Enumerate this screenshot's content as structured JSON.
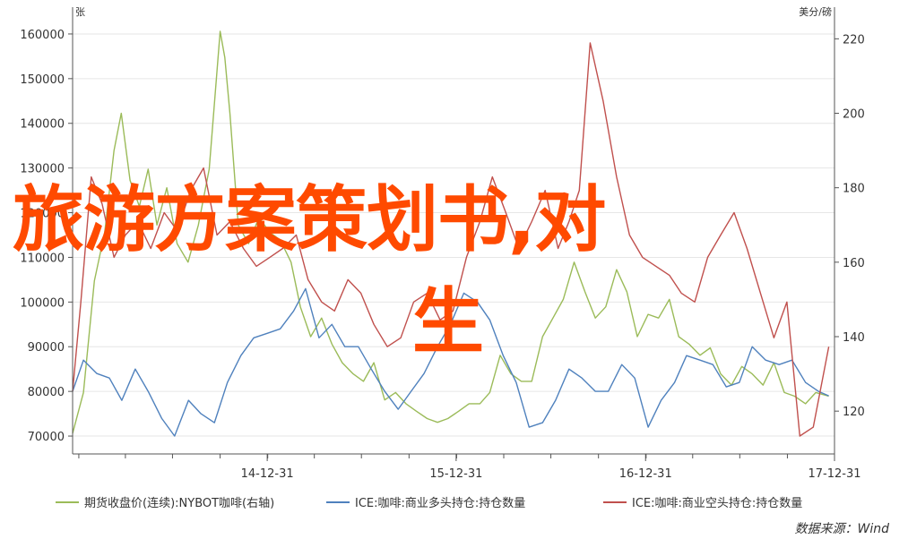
{
  "chart_data": {
    "type": "line",
    "left_axis": {
      "unit": "张",
      "ticks": [
        "160000",
        "150000",
        "140000",
        "130000",
        "120000",
        "110000",
        "100000",
        "90000",
        "80000",
        "70000"
      ],
      "ylim": [
        66000,
        166000
      ]
    },
    "right_axis": {
      "unit": "美分/磅",
      "ticks": [
        "220",
        "200",
        "180",
        "160",
        "140",
        "120"
      ],
      "ylim": [
        108.5,
        228.5
      ]
    },
    "x_ticks": [
      "14-12-31",
      "15-12-31",
      "16-12-31",
      "17-12-31"
    ],
    "xlim": [
      "2013-12-20",
      "2017-12-31"
    ],
    "series": [
      {
        "name": "期货收盘价(连续):NYBOT咖啡(右轴)",
        "axis": "right",
        "color": "#9bbb59",
        "dates": [
          "2013-12-20",
          "2014-01-10",
          "2014-01-31",
          "2014-02-20",
          "2014-03-10",
          "2014-03-24",
          "2014-04-10",
          "2014-04-28",
          "2014-05-15",
          "2014-06-01",
          "2014-06-20",
          "2014-07-10",
          "2014-07-31",
          "2014-08-20",
          "2014-09-10",
          "2014-10-01",
          "2014-10-10",
          "2014-10-20",
          "2014-11-05",
          "2014-11-25",
          "2014-12-15",
          "2015-01-05",
          "2015-01-25",
          "2015-02-15",
          "2015-03-05",
          "2015-03-25",
          "2015-04-15",
          "2015-05-05",
          "2015-05-25",
          "2015-06-15",
          "2015-07-05",
          "2015-07-25",
          "2015-08-15",
          "2015-09-05",
          "2015-09-25",
          "2015-10-15",
          "2015-11-05",
          "2015-11-25",
          "2015-12-15",
          "2016-01-05",
          "2016-01-25",
          "2016-02-15",
          "2016-03-05",
          "2016-03-25",
          "2016-04-15",
          "2016-05-05",
          "2016-05-25",
          "2016-06-15",
          "2016-07-05",
          "2016-07-25",
          "2016-08-15",
          "2016-09-05",
          "2016-09-25",
          "2016-10-15",
          "2016-11-05",
          "2016-11-25",
          "2016-12-15",
          "2017-01-05",
          "2017-01-25",
          "2017-02-15",
          "2017-03-05",
          "2017-03-25",
          "2017-04-15",
          "2017-05-05",
          "2017-05-25",
          "2017-06-15",
          "2017-07-05",
          "2017-07-25",
          "2017-08-15",
          "2017-09-05",
          "2017-09-25",
          "2017-10-15",
          "2017-11-05",
          "2017-11-25",
          "2017-12-20"
        ],
        "values": [
          114,
          125,
          155,
          168,
          190,
          200,
          182,
          175,
          185,
          170,
          180,
          165,
          160,
          170,
          185,
          222,
          215,
          200,
          170,
          165,
          172,
          168,
          166,
          160,
          148,
          140,
          145,
          138,
          133,
          130,
          128,
          133,
          123,
          125,
          122,
          120,
          118,
          117,
          118,
          120,
          122,
          122,
          125,
          135,
          130,
          128,
          128,
          140,
          145,
          150,
          160,
          152,
          145,
          148,
          158,
          152,
          140,
          146,
          145,
          150,
          140,
          138,
          135,
          137,
          130,
          127,
          132,
          130,
          127,
          133,
          125,
          124,
          122,
          125,
          124
        ]
      },
      {
        "name": "ICE:咖啡:商业多头持仓:持仓数量",
        "axis": "left",
        "color": "#4f81bd",
        "dates": [
          "2013-12-20",
          "2014-01-10",
          "2014-02-05",
          "2014-03-01",
          "2014-03-25",
          "2014-04-20",
          "2014-05-15",
          "2014-06-10",
          "2014-07-05",
          "2014-08-01",
          "2014-08-25",
          "2014-09-20",
          "2014-10-15",
          "2014-11-10",
          "2014-12-05",
          "2014-12-31",
          "2015-01-25",
          "2015-02-20",
          "2015-03-15",
          "2015-04-10",
          "2015-05-05",
          "2015-05-30",
          "2015-06-25",
          "2015-07-20",
          "2015-08-15",
          "2015-09-10",
          "2015-10-05",
          "2015-10-30",
          "2015-11-25",
          "2015-12-20",
          "2016-01-15",
          "2016-02-10",
          "2016-03-05",
          "2016-03-31",
          "2016-04-25",
          "2016-05-20",
          "2016-06-15",
          "2016-07-10",
          "2016-08-05",
          "2016-08-30",
          "2016-09-25",
          "2016-10-20",
          "2016-11-15",
          "2016-12-10",
          "2017-01-05",
          "2017-01-30",
          "2017-02-25",
          "2017-03-20",
          "2017-04-15",
          "2017-05-10",
          "2017-06-05",
          "2017-06-30",
          "2017-07-25",
          "2017-08-20",
          "2017-09-15",
          "2017-10-10",
          "2017-11-05",
          "2017-11-30",
          "2017-12-20"
        ],
        "values": [
          80000,
          87000,
          84000,
          83000,
          78000,
          85000,
          80000,
          74000,
          70000,
          78000,
          75000,
          73000,
          82000,
          88000,
          92000,
          93000,
          94000,
          98000,
          103000,
          92000,
          95000,
          90000,
          90000,
          85000,
          80000,
          76000,
          80000,
          84000,
          90000,
          95000,
          102000,
          100000,
          96000,
          88000,
          82000,
          72000,
          73000,
          78000,
          85000,
          83000,
          80000,
          80000,
          86000,
          83000,
          72000,
          78000,
          82000,
          88000,
          87000,
          86000,
          81000,
          82000,
          90000,
          87000,
          86000,
          87000,
          82000,
          80000,
          79000
        ]
      },
      {
        "name": "ICE:咖啡:商业空头持仓:持仓数量",
        "axis": "left",
        "color": "#c0504d",
        "dates": [
          "2013-12-20",
          "2014-01-05",
          "2014-01-25",
          "2014-02-15",
          "2014-03-10",
          "2014-04-01",
          "2014-04-25",
          "2014-05-20",
          "2014-06-15",
          "2014-07-10",
          "2014-08-05",
          "2014-08-30",
          "2014-09-25",
          "2014-10-20",
          "2014-11-15",
          "2014-12-10",
          "2015-01-05",
          "2015-01-30",
          "2015-02-25",
          "2015-03-20",
          "2015-04-15",
          "2015-05-10",
          "2015-06-05",
          "2015-06-30",
          "2015-07-25",
          "2015-08-20",
          "2015-09-15",
          "2015-10-10",
          "2015-11-05",
          "2015-11-30",
          "2015-12-25",
          "2016-01-20",
          "2016-02-15",
          "2016-03-10",
          "2016-04-05",
          "2016-04-30",
          "2016-05-25",
          "2016-06-20",
          "2016-07-15",
          "2016-08-05",
          "2016-08-25",
          "2016-09-15",
          "2016-10-10",
          "2016-11-05",
          "2016-11-30",
          "2016-12-25",
          "2017-01-20",
          "2017-02-15",
          "2017-03-10",
          "2017-04-05",
          "2017-04-30",
          "2017-05-25",
          "2017-06-20",
          "2017-07-15",
          "2017-08-10",
          "2017-09-05",
          "2017-09-30",
          "2017-10-25",
          "2017-11-20",
          "2017-12-20"
        ],
        "values": [
          80000,
          100000,
          128000,
          122000,
          110000,
          115000,
          118000,
          112000,
          120000,
          116000,
          125000,
          130000,
          115000,
          118000,
          112000,
          108000,
          110000,
          112000,
          115000,
          105000,
          100000,
          98000,
          105000,
          102000,
          95000,
          90000,
          92000,
          100000,
          102000,
          96000,
          98000,
          110000,
          118000,
          128000,
          120000,
          112000,
          118000,
          125000,
          112000,
          118000,
          125000,
          158000,
          145000,
          128000,
          115000,
          110000,
          108000,
          106000,
          102000,
          100000,
          110000,
          115000,
          120000,
          112000,
          102000,
          92000,
          100000,
          70000,
          72000,
          90000
        ]
      }
    ],
    "source": "数据来源：Wind"
  },
  "overlay": {
    "line1": "旅游方案策划书,对",
    "line2": "生"
  }
}
